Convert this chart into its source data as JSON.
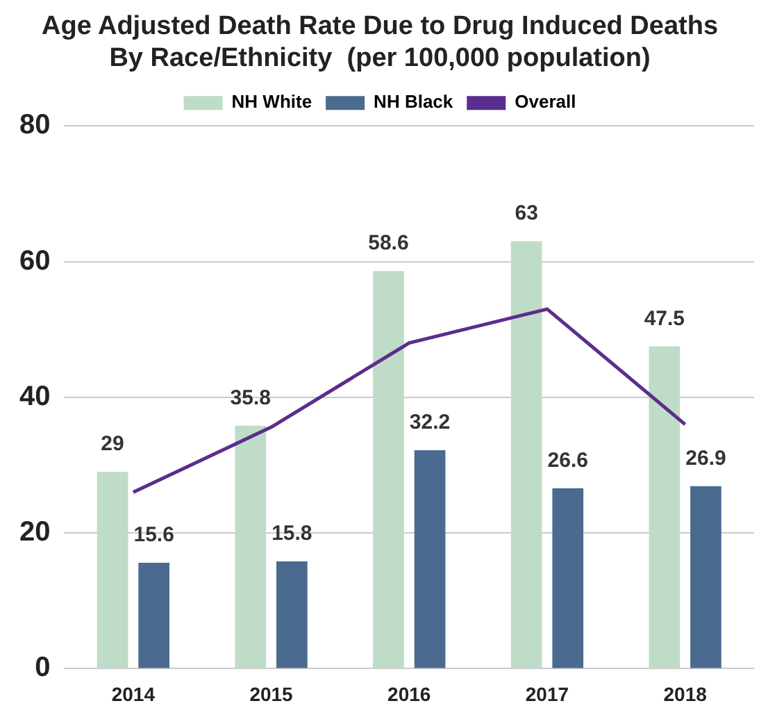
{
  "chart_data": {
    "type": "bar",
    "title": [
      "Age Adjusted Death Rate Due to Drug Induced Deaths",
      "By Race/Ethnicity  (per 100,000 population)"
    ],
    "categories": [
      "2014",
      "2015",
      "2016",
      "2017",
      "2018"
    ],
    "series": [
      {
        "name": "NH White",
        "color": "#bfdcc8",
        "values": [
          29,
          35.8,
          58.6,
          63,
          47.5
        ],
        "value_labels": [
          "29",
          "35.8",
          "58.6",
          "63",
          "47.5"
        ]
      },
      {
        "name": "NH Black",
        "color": "#4a6b8f",
        "values": [
          15.6,
          15.8,
          32.2,
          26.6,
          26.9
        ],
        "value_labels": [
          "15.6",
          "15.8",
          "32.2",
          "26.6",
          "26.9"
        ]
      },
      {
        "name": "Overall",
        "type": "line",
        "color": "#5b2d8e",
        "values": [
          26,
          35.6,
          48,
          53,
          36
        ]
      }
    ],
    "ylim": [
      0,
      80
    ],
    "yticks": [
      0,
      20,
      40,
      60,
      80
    ],
    "grid": "y",
    "legend": "top",
    "marker": "none"
  }
}
